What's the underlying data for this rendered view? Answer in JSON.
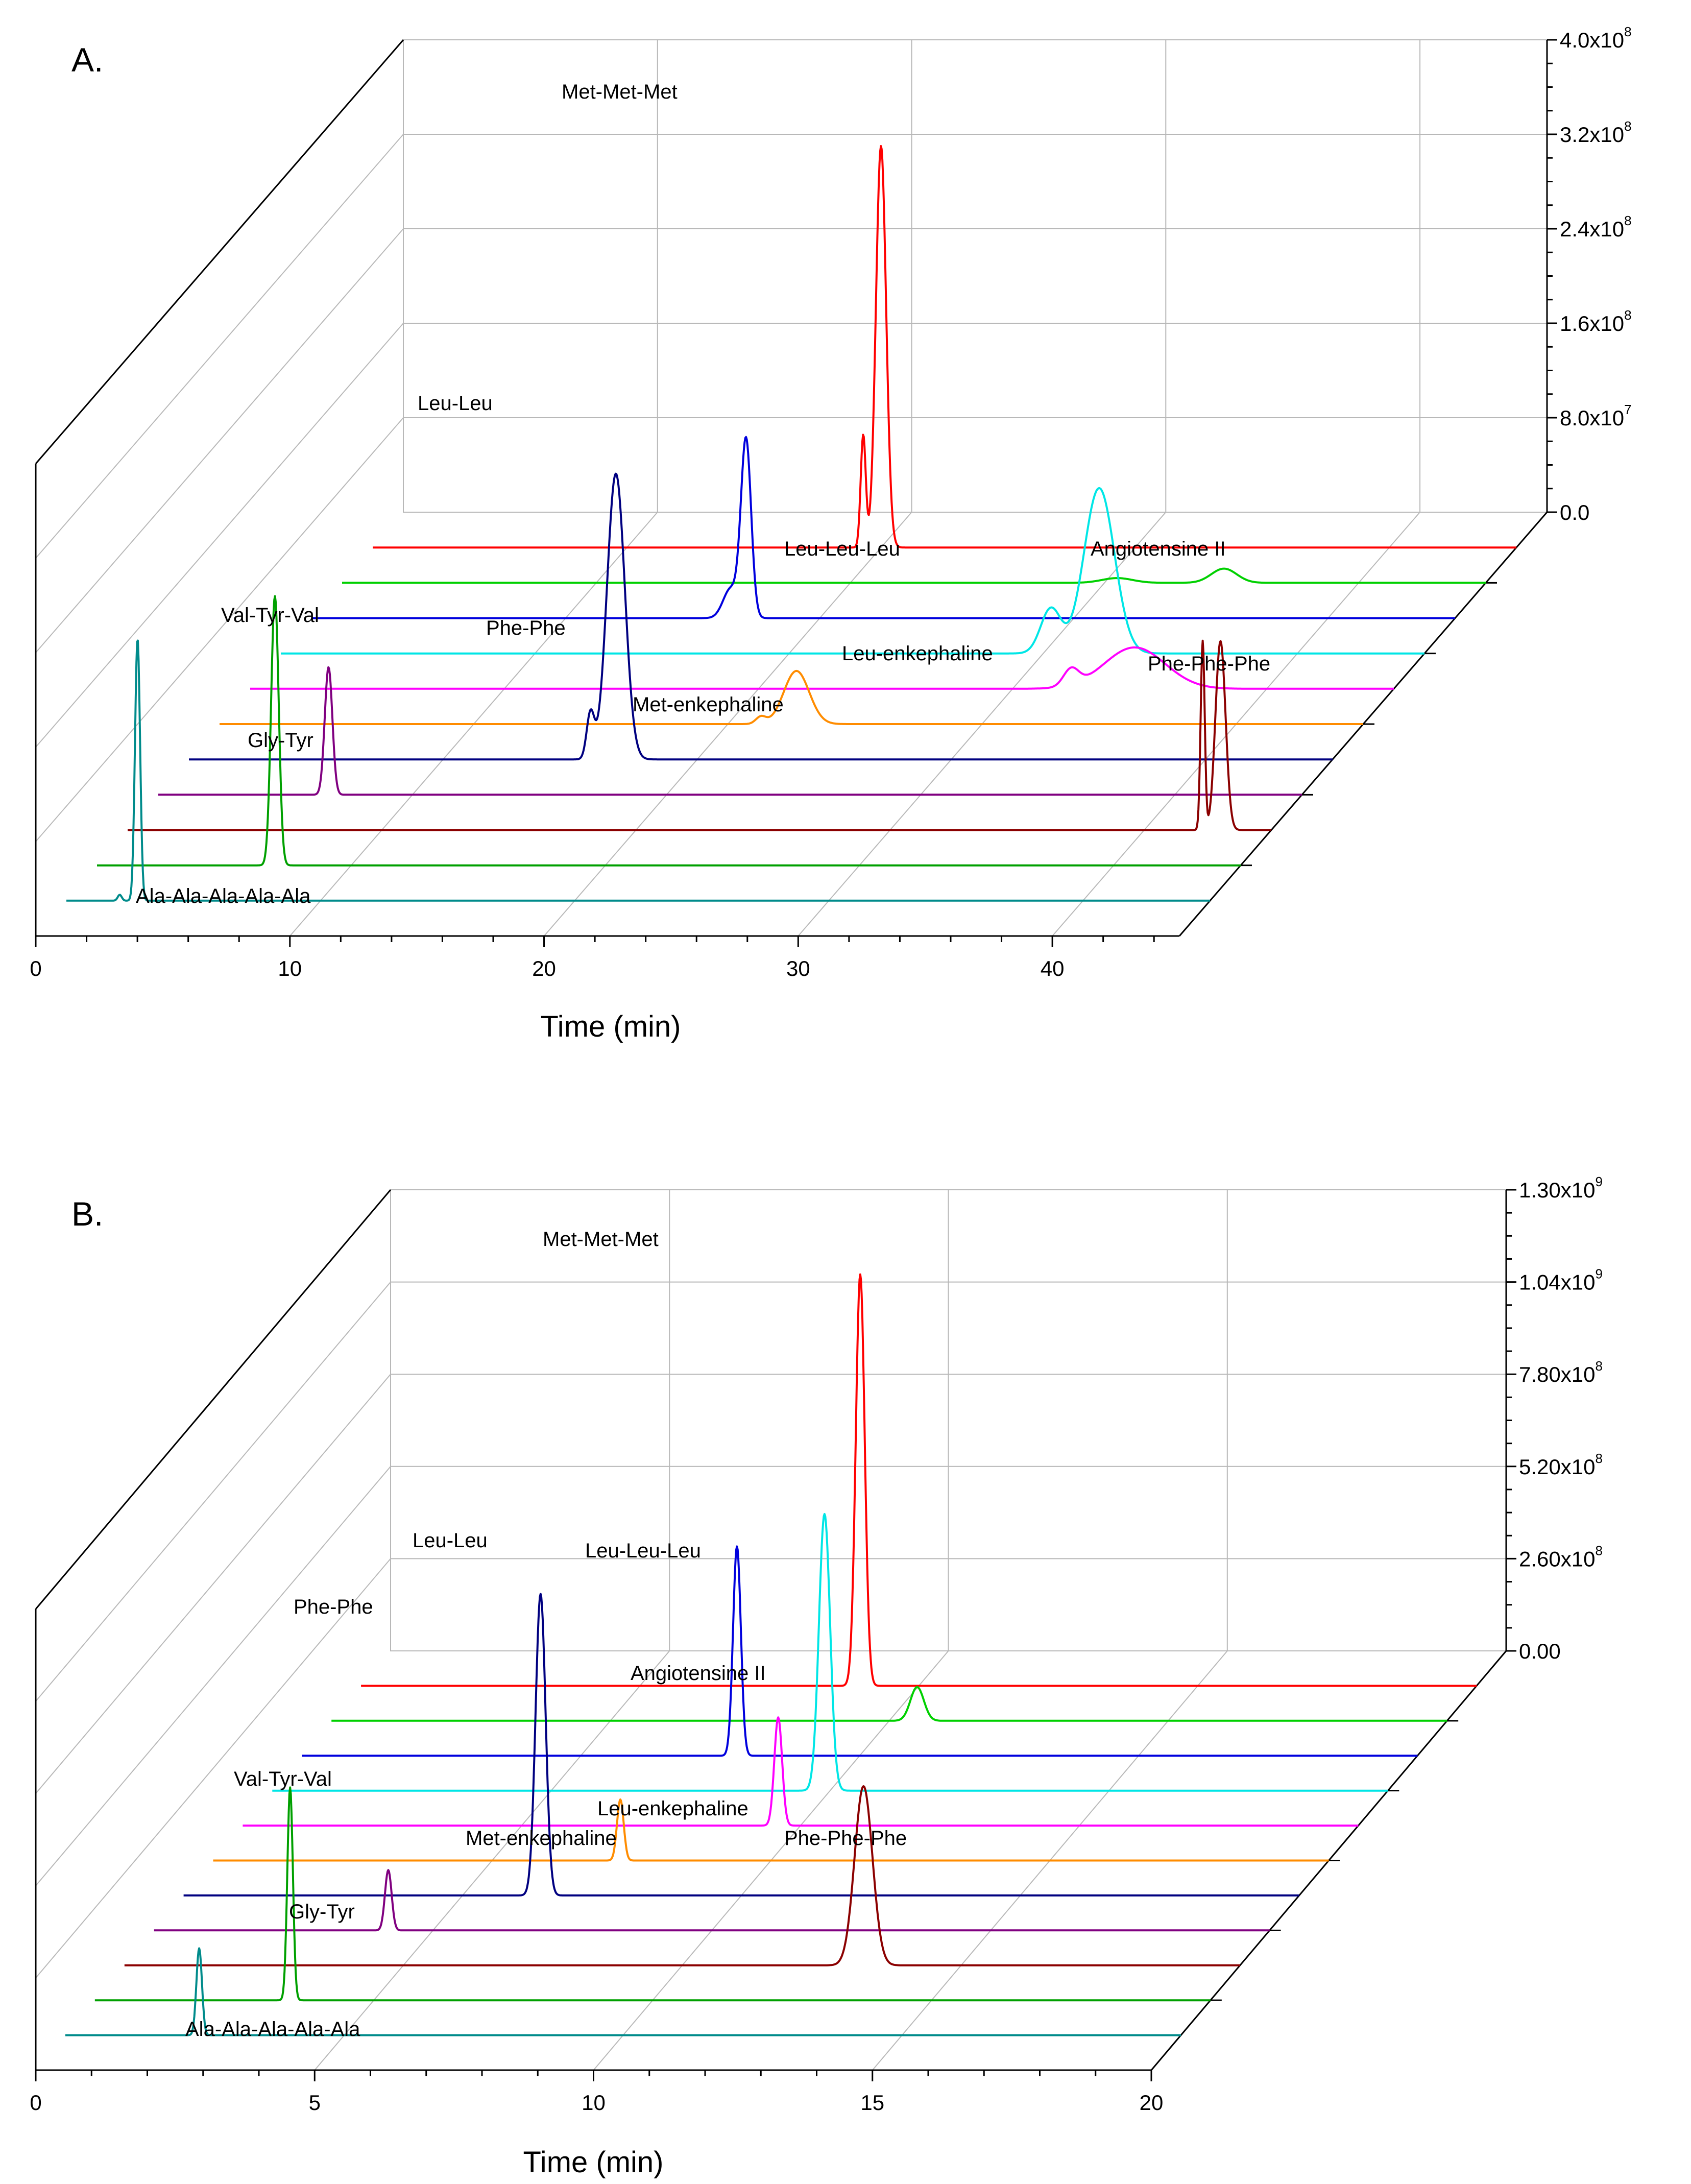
{
  "chart_data": [
    {
      "type": "line",
      "panel_label": "A.",
      "xlabel": "Time (min)",
      "xlim": [
        0,
        45
      ],
      "x_ticks": [
        "0",
        "10",
        "20",
        "30",
        "40"
      ],
      "ylabel": "",
      "ylim": [
        0,
        400000000
      ],
      "y_tick_labels": [
        "0.0",
        "8.0x10",
        "1.6x10",
        "2.4x10",
        "3.2x10",
        "4.0x10"
      ],
      "y_tick_exponents": [
        "",
        "7",
        "8",
        "8",
        "8",
        "8"
      ],
      "series": [
        {
          "name": "Met-Met-Met",
          "color": "#ff0000",
          "peaks": [
            [
              19.3,
              95000000,
              0.1
            ],
            [
              20.0,
              340000000,
              0.2
            ]
          ]
        },
        {
          "name": "Angiotensine II",
          "color": "#00d000",
          "peaks": [
            [
              30.5,
              4000000,
              0.6
            ],
            [
              34.7,
              12000000,
              0.5
            ]
          ]
        },
        {
          "name": "Leu-Leu",
          "color": "#0000dd",
          "peaks": [
            [
              16.5,
              25000000,
              0.3
            ],
            [
              17.1,
              150000000,
              0.2
            ]
          ]
        },
        {
          "name": "Leu-Leu-Leu",
          "color": "#00e6e6",
          "peaks": [
            [
              30.3,
              38000000,
              0.4
            ],
            [
              32.2,
              140000000,
              0.6
            ]
          ]
        },
        {
          "name": "Leu-enkephaline",
          "color": "#ff00ff",
          "peaks": [
            [
              32.3,
              14000000,
              0.3
            ],
            [
              34.8,
              35000000,
              1.2
            ]
          ]
        },
        {
          "name": "Met-enkephaline",
          "color": "#ff8c00",
          "peaks": [
            [
              21.3,
              6000000,
              0.2
            ],
            [
              22.7,
              45000000,
              0.5
            ]
          ]
        },
        {
          "name": "Phe-Phe",
          "color": "#000080",
          "peaks": [
            [
              15.8,
              38000000,
              0.15
            ],
            [
              16.8,
              242000000,
              0.35
            ]
          ]
        },
        {
          "name": "Gly-Tyr",
          "color": "#800080",
          "peaks": [
            [
              6.7,
              108000000,
              0.15
            ]
          ]
        },
        {
          "name": "Phe-Phe-Phe",
          "color": "#8b0000",
          "peaks": [
            [
              42.3,
              160000000,
              0.08
            ],
            [
              43.0,
              160000000,
              0.2
            ]
          ]
        },
        {
          "name": "Val-Tyr-Val",
          "color": "#00a000",
          "peaks": [
            [
              7.0,
              228000000,
              0.15
            ]
          ]
        },
        {
          "name": "Ala-Ala-Ala-Ala-Ala",
          "color": "#008b8b",
          "peaks": [
            [
              2.1,
              5000000,
              0.08
            ],
            [
              2.8,
              222000000,
              0.1
            ]
          ]
        }
      ],
      "annotations": [
        "Met-Met-Met",
        "Leu-Leu",
        "Leu-Leu-Leu",
        "Angiotensine II",
        "Val-Tyr-Val",
        "Phe-Phe",
        "Leu-enkephaline",
        "Phe-Phe-Phe",
        "Met-enkephaline",
        "Gly-Tyr",
        "Ala-Ala-Ala-Ala-Ala"
      ]
    },
    {
      "type": "line",
      "panel_label": "B.",
      "xlabel": "Time (min)",
      "xlim": [
        0,
        20
      ],
      "x_ticks": [
        "0",
        "5",
        "10",
        "15",
        "20"
      ],
      "ylabel": "",
      "ylim": [
        0,
        1300000000
      ],
      "y_tick_labels": [
        "0.00",
        "2.60x10",
        "5.20x10",
        "7.80x10",
        "1.04x10",
        "1.30x10"
      ],
      "y_tick_exponents": [
        "",
        "8",
        "8",
        "8",
        "9",
        "9"
      ],
      "series": [
        {
          "name": "Met-Met-Met",
          "color": "#ff0000",
          "peaks": [
            [
              8.95,
              1160000000,
              0.08
            ]
          ]
        },
        {
          "name": "Angiotensine II",
          "color": "#00d000",
          "peaks": [
            [
              10.5,
              95000000,
              0.12
            ]
          ]
        },
        {
          "name": "Leu-Leu",
          "color": "#0000dd",
          "peaks": [
            [
              7.8,
              590000000,
              0.07
            ]
          ]
        },
        {
          "name": "Leu-Leu-Leu",
          "color": "#00e6e6",
          "peaks": [
            [
              9.9,
              780000000,
              0.1
            ]
          ]
        },
        {
          "name": "Leu-enkephaline",
          "color": "#ff00ff",
          "peaks": [
            [
              9.6,
              305000000,
              0.07
            ]
          ]
        },
        {
          "name": "Met-enkephaline",
          "color": "#ff8c00",
          "peaks": [
            [
              7.3,
              172000000,
              0.06
            ]
          ]
        },
        {
          "name": "Phe-Phe",
          "color": "#000080",
          "peaks": [
            [
              6.4,
              850000000,
              0.09
            ]
          ]
        },
        {
          "name": "Gly-Tyr",
          "color": "#800080",
          "peaks": [
            [
              4.2,
              170000000,
              0.06
            ]
          ]
        },
        {
          "name": "Phe-Phe-Phe",
          "color": "#8b0000",
          "peaks": [
            [
              13.25,
              505000000,
              0.16
            ]
          ]
        },
        {
          "name": "Val-Tyr-Val",
          "color": "#00a000",
          "peaks": [
            [
              3.5,
              600000000,
              0.05
            ]
          ]
        },
        {
          "name": "Ala-Ala-Ala-Ala-Ala",
          "color": "#008b8b",
          "peaks": [
            [
              2.4,
              245000000,
              0.05
            ]
          ]
        }
      ],
      "annotations": [
        "Met-Met-Met",
        "Leu-Leu",
        "Leu-Leu-Leu",
        "Phe-Phe",
        "Angiotensine II",
        "Val-Tyr-Val",
        "Leu-enkephaline",
        "Met-enkephaline",
        "Phe-Phe-Phe",
        "Gly-Tyr",
        "Ala-Ala-Ala-Ala-Ala"
      ]
    }
  ]
}
